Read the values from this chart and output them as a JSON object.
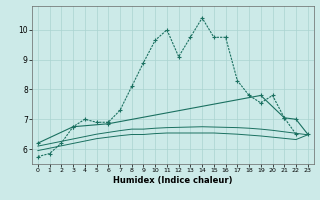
{
  "xlabel": "Humidex (Indice chaleur)",
  "background_color": "#cceae8",
  "grid_color": "#aad4d0",
  "line_color": "#1a7060",
  "x_values": [
    0,
    1,
    2,
    3,
    4,
    5,
    6,
    7,
    8,
    9,
    10,
    11,
    12,
    13,
    14,
    15,
    16,
    17,
    18,
    19,
    20,
    21,
    22,
    23
  ],
  "series1": [
    5.75,
    5.85,
    6.2,
    6.75,
    7.0,
    6.9,
    6.9,
    7.3,
    8.1,
    8.9,
    9.65,
    10.0,
    9.1,
    9.75,
    10.4,
    9.75,
    9.75,
    8.3,
    7.8,
    7.55,
    7.8,
    7.05,
    6.5,
    null
  ],
  "series2": [
    6.2,
    null,
    null,
    6.75,
    null,
    null,
    6.85,
    null,
    null,
    null,
    null,
    null,
    null,
    null,
    null,
    null,
    null,
    null,
    null,
    7.8,
    null,
    7.05,
    7.0,
    6.5
  ],
  "series3": [
    6.1,
    6.18,
    6.26,
    6.34,
    6.42,
    6.5,
    6.56,
    6.62,
    6.67,
    6.67,
    6.7,
    6.72,
    6.73,
    6.74,
    6.75,
    6.74,
    6.73,
    6.72,
    6.7,
    6.67,
    6.63,
    6.58,
    6.53,
    6.48
  ],
  "series4": [
    5.95,
    6.03,
    6.11,
    6.19,
    6.27,
    6.35,
    6.4,
    6.45,
    6.49,
    6.49,
    6.52,
    6.54,
    6.54,
    6.54,
    6.54,
    6.54,
    6.52,
    6.5,
    6.47,
    6.44,
    6.4,
    6.36,
    6.32,
    6.48
  ],
  "ylim": [
    5.5,
    10.8
  ],
  "yticks": [
    6,
    7,
    8,
    9,
    10
  ],
  "xticks": [
    0,
    1,
    2,
    3,
    4,
    5,
    6,
    7,
    8,
    9,
    10,
    11,
    12,
    13,
    14,
    15,
    16,
    17,
    18,
    19,
    20,
    21,
    22,
    23
  ]
}
